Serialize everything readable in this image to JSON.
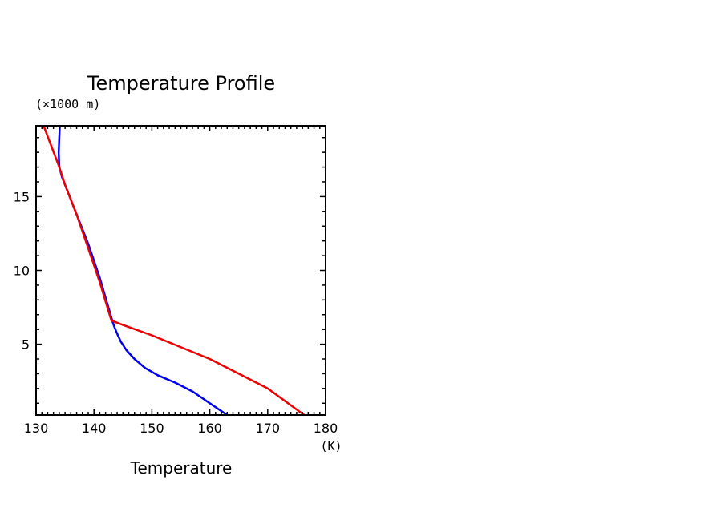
{
  "chart_data": {
    "type": "line",
    "title": "Temperature Profile",
    "xlabel": "Temperature",
    "xunit": "(K)",
    "yunit": "(×1000 m)",
    "xlim": [
      130,
      180
    ],
    "ylim": [
      0.2,
      19.8
    ],
    "xticks": [
      130,
      140,
      150,
      160,
      170,
      180
    ],
    "xtick_labels": [
      "130",
      "140",
      "150",
      "160",
      "170",
      "180"
    ],
    "yticks": [
      5,
      10,
      15
    ],
    "ytick_labels": [
      "5",
      "10",
      "15"
    ],
    "grid": false,
    "series": [
      {
        "color": "#0000ee",
        "x": [
          163.0,
          160.0,
          157.0,
          154.0,
          151.0,
          148.8,
          147.0,
          145.6,
          144.6,
          143.9,
          143.4,
          143.0,
          141.0,
          139.0,
          137.0,
          135.0,
          134.5,
          134.0,
          133.9,
          134.0,
          134.1
        ],
        "y": [
          0.2,
          1.0,
          1.8,
          2.4,
          2.9,
          3.4,
          4.0,
          4.6,
          5.2,
          5.8,
          6.3,
          6.8,
          9.5,
          11.8,
          13.8,
          15.8,
          16.3,
          17.0,
          18.0,
          19.0,
          19.8
        ]
      },
      {
        "color": "#ee0000",
        "x": [
          176.3,
          170.0,
          160.0,
          150.0,
          145.0,
          143.0,
          141.0,
          139.0,
          137.0,
          135.0,
          134.0,
          131.3
        ],
        "y": [
          0.2,
          2.0,
          4.0,
          5.6,
          6.3,
          6.6,
          9.2,
          11.5,
          13.8,
          15.8,
          17.0,
          19.8
        ]
      }
    ]
  }
}
